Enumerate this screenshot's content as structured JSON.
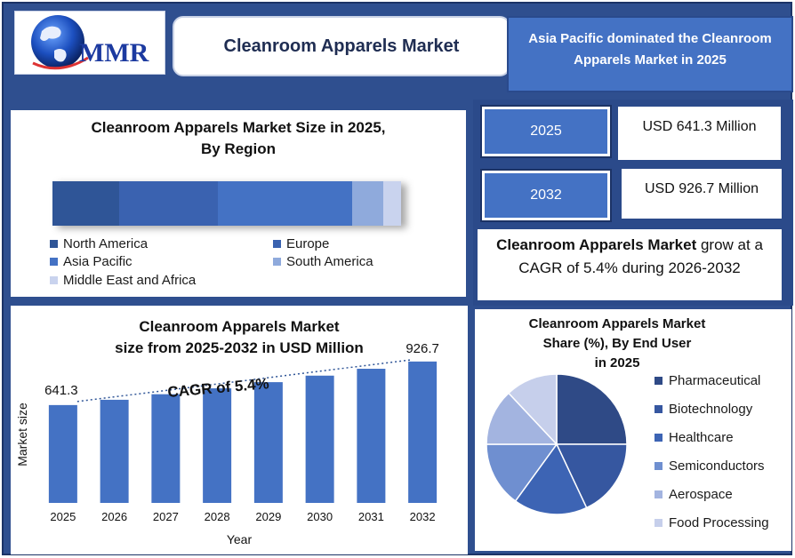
{
  "header": {
    "logo_text": "MMR",
    "title": "Cleanroom Apparels Market",
    "highlight": "Asia Pacific dominated the Cleanroom Apparels Market in 2025"
  },
  "region": {
    "title_line1": "Cleanroom Apparels Market Size in 2025,",
    "title_line2": "By Region"
  },
  "stats": {
    "year1": "2025",
    "value1": "USD 641.3 Million",
    "year2": "2032",
    "value2": "USD 926.7 Million",
    "cagr_bold": "Cleanroom Apparels Market",
    "cagr_rest": " grow at a CAGR of 5.4% during 2026-2032"
  },
  "bar_panel": {
    "title_line1": "Cleanroom Apparels Market",
    "title_line2": "size from 2025-2032 in USD Million"
  },
  "pie_panel": {
    "title_line1": "Cleanroom Apparels Market",
    "title_line2": "Share (%), By End User",
    "title_line3": "in 2025"
  },
  "chart_data": [
    {
      "type": "bar",
      "orientation": "horizontal-stacked",
      "series": [
        {
          "name": "North America",
          "value": 19,
          "color": "#2f5597"
        },
        {
          "name": "Europe",
          "value": 28,
          "color": "#3a62b0"
        },
        {
          "name": "Asia Pacific",
          "value": 38,
          "color": "#4472c4"
        },
        {
          "name": "South America",
          "value": 9,
          "color": "#8faadc"
        },
        {
          "name": "Middle East and Africa",
          "value": 5,
          "color": "#c9d3ee"
        }
      ],
      "legend": "bottom"
    },
    {
      "type": "bar",
      "categories": [
        "2025",
        "2026",
        "2027",
        "2028",
        "2029",
        "2030",
        "2031",
        "2032"
      ],
      "values": [
        641.3,
        675.9,
        712.4,
        750.9,
        791.4,
        834.1,
        879.2,
        926.7
      ],
      "labels": {
        "first": "641.3",
        "last": "926.7"
      },
      "annotation": "CAGR of 5.4%",
      "xlabel": "Year",
      "ylabel": "Market size",
      "ylim": [
        0,
        1000
      ],
      "color": "#4472c4",
      "grid": false
    },
    {
      "type": "pie",
      "labels": [
        "Pharmaceutical",
        "Biotechnology",
        "Healthcare",
        "Semiconductors",
        "Aerospace",
        "Food Processing"
      ],
      "values": [
        25,
        18,
        17,
        15,
        13,
        12
      ],
      "colors": [
        "#2f4a86",
        "#3657a0",
        "#3d64b4",
        "#6f8fd0",
        "#a3b4e0",
        "#c6cfeb"
      ],
      "legend": "right"
    }
  ]
}
